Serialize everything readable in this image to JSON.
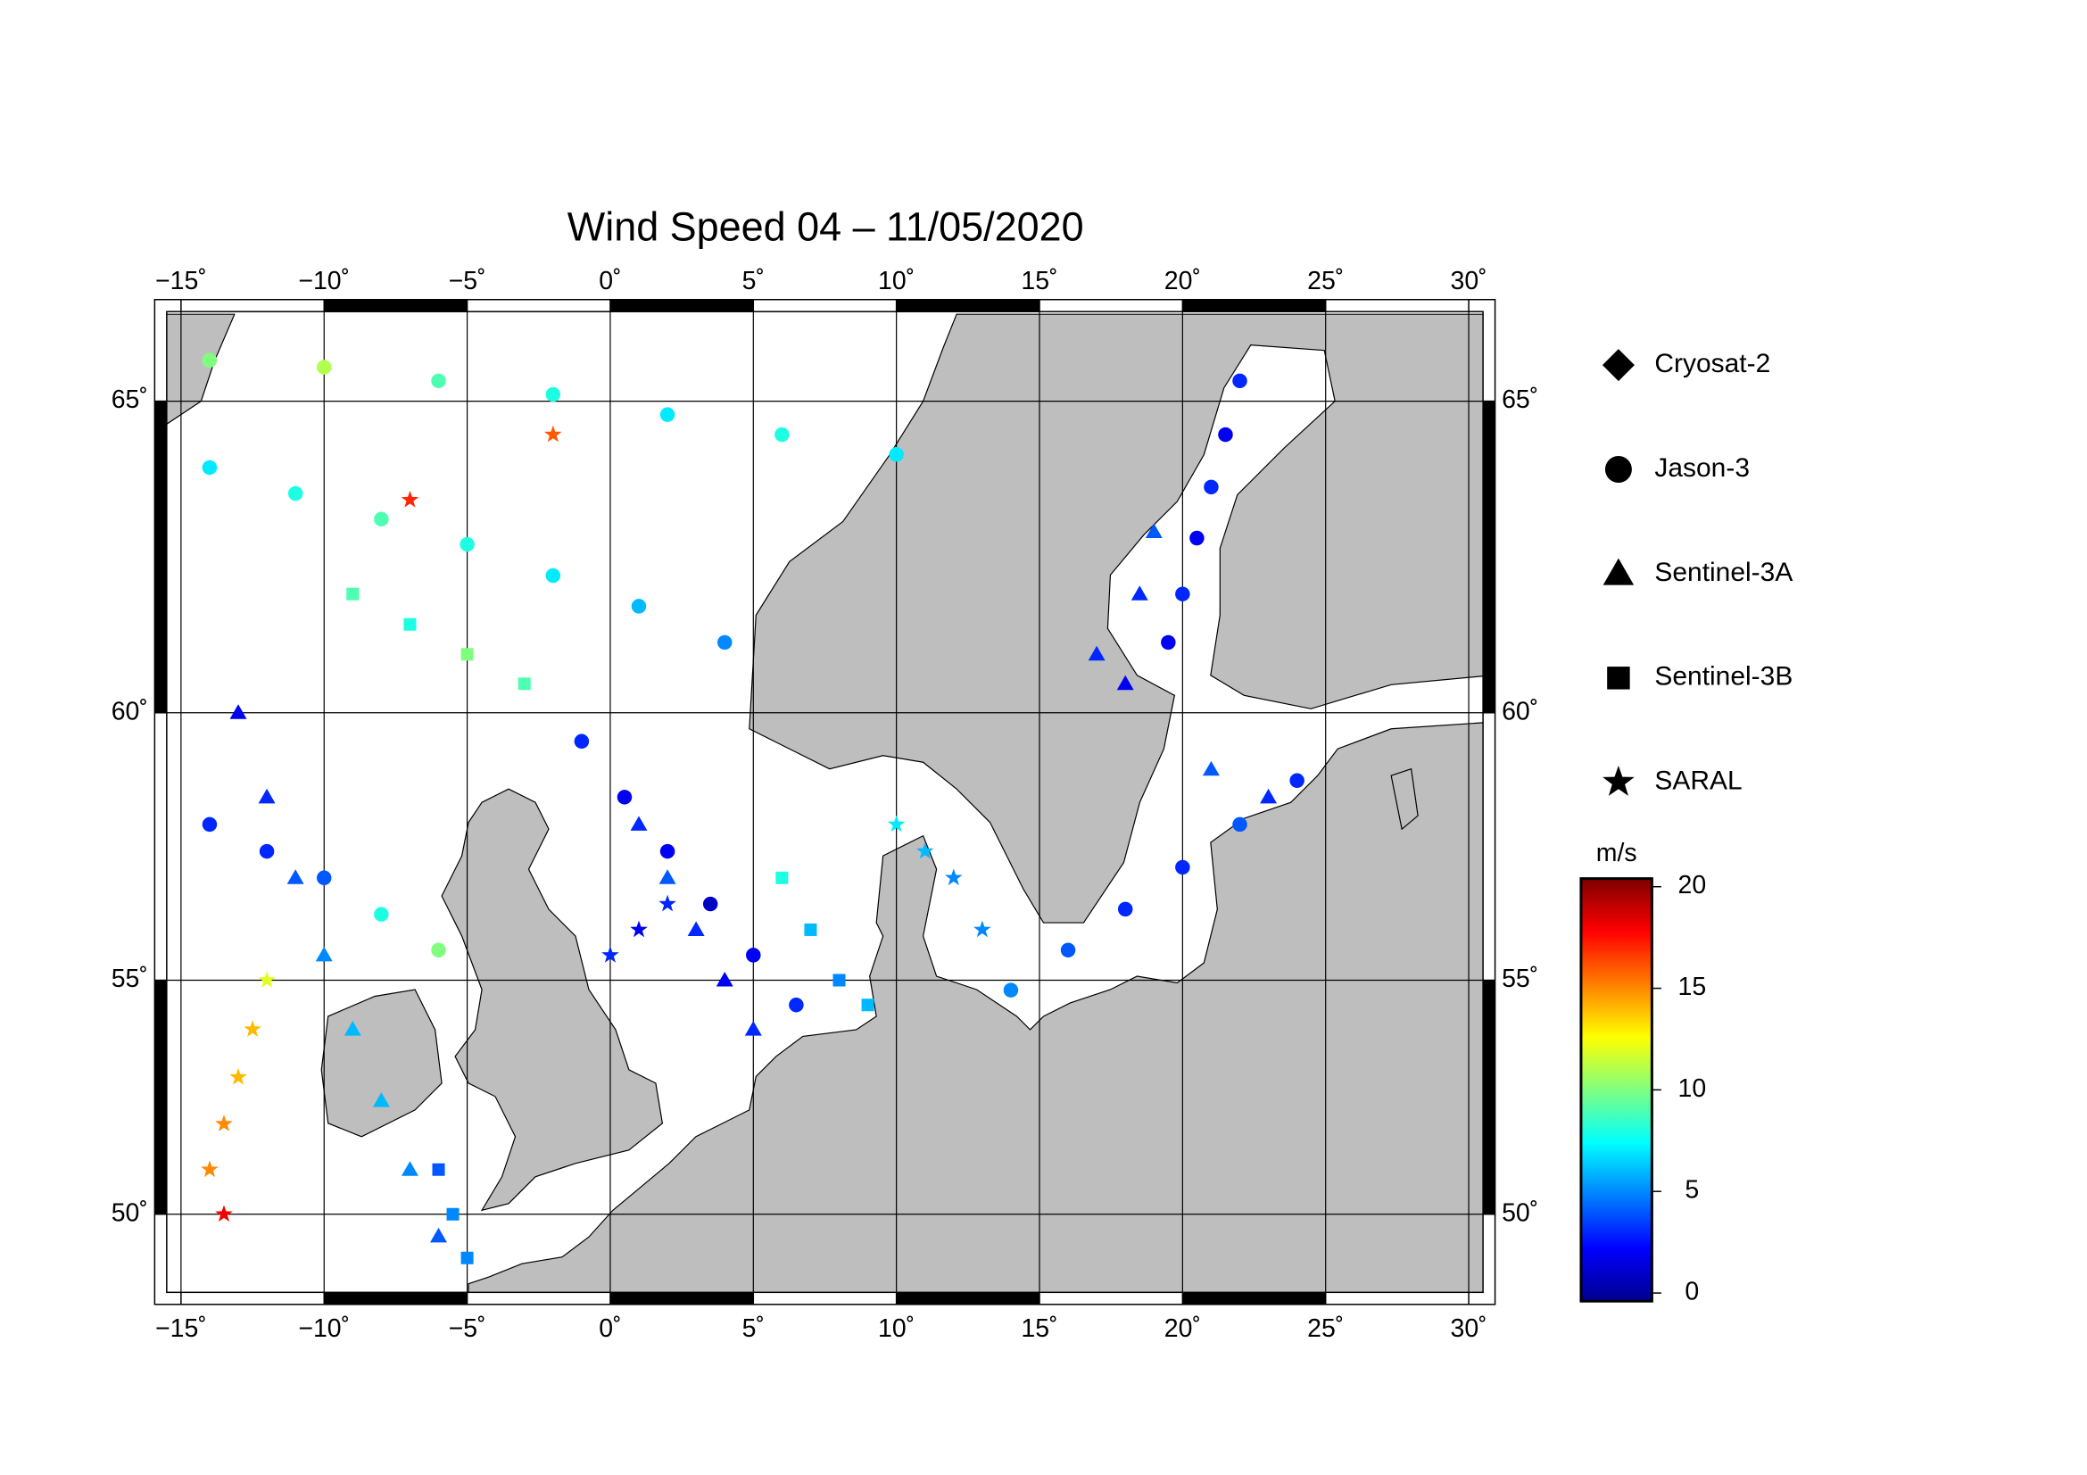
{
  "chart_data": {
    "type": "scatter-map",
    "title": "Wind Speed 04 – 11/05/2020",
    "xlim": [
      -15.5,
      30.5
    ],
    "ylim": [
      48.2,
      66.3
    ],
    "xticks": [
      {
        "value": -15,
        "label": "−15˚"
      },
      {
        "value": -10,
        "label": "−10˚"
      },
      {
        "value": -5,
        "label": "−5˚"
      },
      {
        "value": 0,
        "label": "0˚"
      },
      {
        "value": 5,
        "label": "5˚"
      },
      {
        "value": 10,
        "label": "10˚"
      },
      {
        "value": 15,
        "label": "15˚"
      },
      {
        "value": 20,
        "label": "20˚"
      },
      {
        "value": 25,
        "label": "25˚"
      },
      {
        "value": 30,
        "label": "30˚"
      }
    ],
    "yticks": [
      {
        "value": 50,
        "label": "50˚"
      },
      {
        "value": 55,
        "label": "55˚"
      },
      {
        "value": 60,
        "label": "60˚"
      },
      {
        "value": 65,
        "label": "65˚"
      }
    ],
    "grid": true,
    "colorbar": {
      "label": "m/s",
      "clim": [
        -0.4,
        20.4
      ],
      "ticks": [
        0,
        5,
        10,
        15,
        20
      ],
      "colormap": "jet"
    },
    "series": [
      {
        "name": "Cryosat-2",
        "marker": "diamond",
        "points": []
      },
      {
        "name": "Jason-3",
        "marker": "circle",
        "points": [
          [
            -14,
            64,
            7
          ],
          [
            -11,
            63.6,
            8
          ],
          [
            -8,
            63.2,
            9
          ],
          [
            -5,
            62.8,
            8
          ],
          [
            -2,
            62.3,
            7
          ],
          [
            1,
            61.8,
            6
          ],
          [
            4,
            61.2,
            5
          ],
          [
            14,
            54.8,
            5
          ],
          [
            16,
            55.6,
            4
          ],
          [
            18,
            56.4,
            3
          ],
          [
            20,
            57.2,
            3
          ],
          [
            22,
            58,
            4
          ],
          [
            24,
            58.8,
            3
          ],
          [
            22,
            65.3,
            3
          ],
          [
            21.5,
            64.5,
            2
          ],
          [
            21,
            63.7,
            3
          ],
          [
            20.5,
            62.9,
            2
          ],
          [
            20,
            62,
            3
          ],
          [
            19.5,
            61.2,
            2
          ],
          [
            -1,
            59.5,
            3
          ],
          [
            0.5,
            58.5,
            2
          ],
          [
            2,
            57.5,
            2
          ],
          [
            3.5,
            56.5,
            1
          ],
          [
            5,
            55.5,
            2
          ],
          [
            6.5,
            54.5,
            3
          ],
          [
            -14,
            65.6,
            10
          ],
          [
            -10,
            65.5,
            11
          ],
          [
            -6,
            65.3,
            9
          ],
          [
            -2,
            65.1,
            8
          ],
          [
            2,
            64.8,
            7
          ],
          [
            6,
            64.5,
            8
          ],
          [
            10,
            64.2,
            7
          ],
          [
            -14,
            58,
            3
          ],
          [
            -12,
            57.5,
            3
          ],
          [
            -10,
            57,
            4
          ],
          [
            -8,
            56.3,
            8
          ],
          [
            -6,
            55.6,
            10
          ]
        ]
      },
      {
        "name": "Sentinel-3A",
        "marker": "triangle",
        "points": [
          [
            -13,
            60,
            2
          ],
          [
            -12,
            58.5,
            3
          ],
          [
            -11,
            57,
            4
          ],
          [
            -10,
            55.5,
            5
          ],
          [
            -9,
            54,
            6
          ],
          [
            -8,
            52.5,
            6
          ],
          [
            -7,
            51,
            5
          ],
          [
            -6,
            49.5,
            4
          ],
          [
            1,
            58,
            3
          ],
          [
            2,
            57,
            4
          ],
          [
            3,
            56,
            3
          ],
          [
            4,
            55,
            2
          ],
          [
            5,
            54,
            3
          ],
          [
            17,
            61,
            3
          ],
          [
            18,
            60.5,
            2
          ],
          [
            18.5,
            62,
            3
          ],
          [
            19,
            63,
            4
          ],
          [
            21,
            59,
            4
          ],
          [
            23,
            58.5,
            3
          ]
        ]
      },
      {
        "name": "Sentinel-3B",
        "marker": "square",
        "points": [
          [
            -9,
            62,
            9
          ],
          [
            -7,
            61.5,
            8
          ],
          [
            -5,
            61,
            10
          ],
          [
            -3,
            60.5,
            9
          ],
          [
            6,
            57,
            8
          ],
          [
            7,
            56,
            6
          ],
          [
            8,
            55,
            5
          ],
          [
            9,
            54.5,
            6
          ],
          [
            -6,
            51,
            4
          ],
          [
            -5.5,
            50,
            5
          ],
          [
            -5,
            49,
            5
          ]
        ]
      },
      {
        "name": "SARAL",
        "marker": "star",
        "points": [
          [
            -14,
            51,
            15
          ],
          [
            -13.5,
            52,
            15
          ],
          [
            -13,
            53,
            14
          ],
          [
            -12.5,
            54,
            14
          ],
          [
            -12,
            55,
            12
          ],
          [
            -13.5,
            50,
            18
          ],
          [
            10,
            58,
            7
          ],
          [
            11,
            57.5,
            6
          ],
          [
            12,
            57,
            5
          ],
          [
            13,
            56,
            5
          ],
          [
            0,
            55.5,
            3
          ],
          [
            1,
            56,
            2
          ],
          [
            2,
            56.5,
            3
          ],
          [
            -2,
            64.5,
            16
          ],
          [
            -7,
            63.5,
            17
          ]
        ]
      }
    ]
  }
}
